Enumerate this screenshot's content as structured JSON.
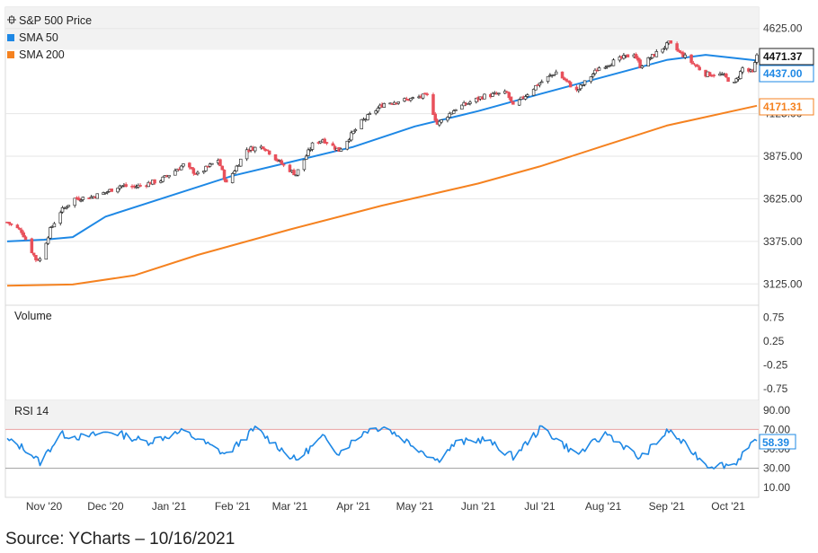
{
  "source_note": "Source: YCharts – 10/16/2021",
  "colors": {
    "up": "#ffffff",
    "down": "#e8505b",
    "candle_outline": "#333333",
    "sma50": "#1e88e5",
    "sma200": "#f58220",
    "rsi": "#1e88e5",
    "grid": "#e6e6e6",
    "shade": "#f2f2f2"
  },
  "chart_data": [
    {
      "type": "candlestick",
      "title": "",
      "legend": [
        {
          "label": "S&P 500 Price",
          "icon": "candlestick-icon"
        },
        {
          "label": "SMA 50",
          "color": "#1e88e5"
        },
        {
          "label": "SMA 200",
          "color": "#f58220"
        }
      ],
      "legend_position": "top-left",
      "x_range": [
        "2020-10-14",
        "2021-10-15"
      ],
      "x_ticks": [
        {
          "date": "2020-11-01",
          "label": "Nov '20"
        },
        {
          "date": "2020-12-01",
          "label": "Dec '20"
        },
        {
          "date": "2021-01-01",
          "label": "Jan '21"
        },
        {
          "date": "2021-02-01",
          "label": "Feb '21"
        },
        {
          "date": "2021-03-01",
          "label": "Mar '21"
        },
        {
          "date": "2021-04-01",
          "label": "Apr '21"
        },
        {
          "date": "2021-05-01",
          "label": "May '21"
        },
        {
          "date": "2021-06-01",
          "label": "Jun '21"
        },
        {
          "date": "2021-07-01",
          "label": "Jul '21"
        },
        {
          "date": "2021-08-01",
          "label": "Aug '21"
        },
        {
          "date": "2021-09-01",
          "label": "Sep '21"
        },
        {
          "date": "2021-10-01",
          "label": "Oct '21"
        }
      ],
      "ylim": [
        3000,
        4750
      ],
      "y_ticks": [
        3125,
        3375,
        3625,
        3875,
        4125,
        4625
      ],
      "y_tick_labels": [
        "3125.00",
        "3375.00",
        "3625.00",
        "3875.00",
        "4125.00",
        "4625.00"
      ],
      "last_values": [
        {
          "series": "S&P 500 Price",
          "value": "4471.37",
          "color": "#111111"
        },
        {
          "series": "SMA 50",
          "value": "4437.00",
          "color": "#1e88e5"
        },
        {
          "series": "SMA 200",
          "value": "4171.31",
          "color": "#f58220"
        }
      ],
      "price_keypoints": [
        [
          "2020-10-14",
          3488
        ],
        [
          "2020-10-21",
          3435
        ],
        [
          "2020-10-28",
          3270
        ],
        [
          "2020-10-30",
          3270
        ],
        [
          "2020-11-04",
          3443
        ],
        [
          "2020-11-09",
          3550
        ],
        [
          "2020-11-16",
          3626
        ],
        [
          "2020-11-24",
          3635
        ],
        [
          "2020-12-01",
          3662
        ],
        [
          "2020-12-08",
          3702
        ],
        [
          "2020-12-15",
          3694
        ],
        [
          "2020-12-28",
          3735
        ],
        [
          "2021-01-08",
          3824
        ],
        [
          "2021-01-15",
          3768
        ],
        [
          "2021-01-25",
          3855
        ],
        [
          "2021-01-29",
          3714
        ],
        [
          "2021-02-08",
          3915
        ],
        [
          "2021-02-16",
          3932
        ],
        [
          "2021-02-25",
          3829
        ],
        [
          "2021-03-04",
          3768
        ],
        [
          "2021-03-12",
          3943
        ],
        [
          "2021-03-17",
          3974
        ],
        [
          "2021-03-25",
          3909
        ],
        [
          "2021-04-05",
          4077
        ],
        [
          "2021-04-16",
          4185
        ],
        [
          "2021-04-29",
          4211
        ],
        [
          "2021-05-07",
          4232
        ],
        [
          "2021-05-12",
          4063
        ],
        [
          "2021-05-21",
          4155
        ],
        [
          "2021-06-04",
          4229
        ],
        [
          "2021-06-15",
          4246
        ],
        [
          "2021-06-18",
          4166
        ],
        [
          "2021-06-30",
          4297
        ],
        [
          "2021-07-09",
          4369
        ],
        [
          "2021-07-19",
          4258
        ],
        [
          "2021-07-30",
          4395
        ],
        [
          "2021-08-16",
          4479
        ],
        [
          "2021-08-19",
          4405
        ],
        [
          "2021-09-02",
          4537
        ],
        [
          "2021-09-10",
          4458
        ],
        [
          "2021-09-20",
          4358
        ],
        [
          "2021-09-28",
          4352
        ],
        [
          "2021-10-04",
          4300
        ],
        [
          "2021-10-08",
          4391
        ],
        [
          "2021-10-13",
          4363
        ],
        [
          "2021-10-15",
          4471
        ]
      ],
      "sma50_keypoints": [
        [
          "2020-10-14",
          3375
        ],
        [
          "2020-11-01",
          3385
        ],
        [
          "2020-11-15",
          3400
        ],
        [
          "2020-12-01",
          3520
        ],
        [
          "2021-01-01",
          3640
        ],
        [
          "2021-02-01",
          3760
        ],
        [
          "2021-03-01",
          3840
        ],
        [
          "2021-04-01",
          3930
        ],
        [
          "2021-05-01",
          4050
        ],
        [
          "2021-06-01",
          4140
        ],
        [
          "2021-07-01",
          4240
        ],
        [
          "2021-08-01",
          4340
        ],
        [
          "2021-09-01",
          4440
        ],
        [
          "2021-09-20",
          4470
        ],
        [
          "2021-10-15",
          4437
        ]
      ],
      "sma200_keypoints": [
        [
          "2020-10-14",
          3115
        ],
        [
          "2020-11-15",
          3122
        ],
        [
          "2020-12-15",
          3175
        ],
        [
          "2021-01-15",
          3295
        ],
        [
          "2021-03-01",
          3445
        ],
        [
          "2021-04-15",
          3585
        ],
        [
          "2021-06-01",
          3715
        ],
        [
          "2021-07-01",
          3815
        ],
        [
          "2021-08-01",
          3935
        ],
        [
          "2021-09-01",
          4055
        ],
        [
          "2021-10-15",
          4171
        ]
      ]
    },
    {
      "type": "line",
      "title": "Volume",
      "ylim": [
        -1,
        1
      ],
      "y_ticks": [
        0.75,
        0.25,
        -0.25,
        -0.75
      ],
      "y_tick_labels": [
        "0.75",
        "0.25",
        "-0.25",
        "-0.75"
      ],
      "series": []
    },
    {
      "type": "line",
      "title": "RSI 14",
      "ylim": [
        0,
        100
      ],
      "y_ticks": [
        90,
        70,
        50,
        30,
        10
      ],
      "y_tick_labels": [
        "90.00",
        "70.00",
        "50.00",
        "30.00",
        "10.00"
      ],
      "reference_lines": [
        70,
        30
      ],
      "last_value": "58.39",
      "rsi_keypoints": [
        [
          "2020-10-14",
          59
        ],
        [
          "2020-10-23",
          50
        ],
        [
          "2020-10-30",
          36
        ],
        [
          "2020-11-09",
          65
        ],
        [
          "2020-11-20",
          62
        ],
        [
          "2020-12-04",
          68
        ],
        [
          "2020-12-21",
          57
        ],
        [
          "2021-01-08",
          68
        ],
        [
          "2021-01-29",
          44
        ],
        [
          "2021-02-12",
          71
        ],
        [
          "2021-03-04",
          38
        ],
        [
          "2021-03-17",
          62
        ],
        [
          "2021-03-25",
          46
        ],
        [
          "2021-04-07",
          69
        ],
        [
          "2021-04-16",
          73
        ],
        [
          "2021-05-12",
          38
        ],
        [
          "2021-05-21",
          56
        ],
        [
          "2021-06-04",
          60
        ],
        [
          "2021-06-18",
          42
        ],
        [
          "2021-07-02",
          72
        ],
        [
          "2021-07-19",
          44
        ],
        [
          "2021-08-03",
          66
        ],
        [
          "2021-08-19",
          40
        ],
        [
          "2021-09-02",
          69
        ],
        [
          "2021-09-21",
          33
        ],
        [
          "2021-10-04",
          34
        ],
        [
          "2021-10-08",
          45
        ],
        [
          "2021-10-15",
          58.39
        ]
      ]
    }
  ]
}
